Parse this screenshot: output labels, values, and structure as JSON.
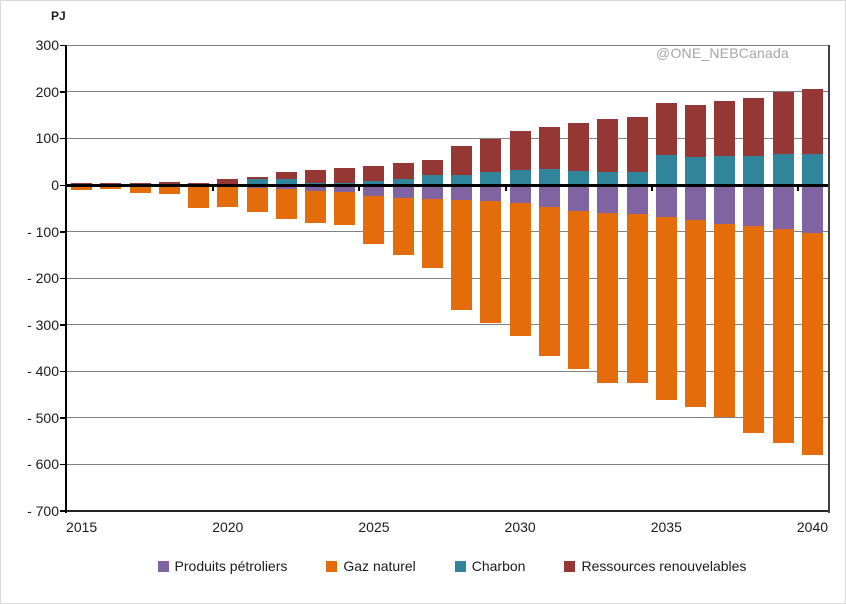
{
  "chart": {
    "unit_label": "PJ",
    "watermark": "@ONE_NEBCanada"
  },
  "chart_data": {
    "type": "bar",
    "stacked": true,
    "title": "",
    "xlabel": "",
    "ylabel": "PJ",
    "ylim": [
      -700,
      300
    ],
    "ytick_step": 100,
    "grid": true,
    "legend_position": "bottom",
    "watermark": "@ONE_NEBCanada",
    "categories": [
      2015,
      2016,
      2017,
      2018,
      2019,
      2020,
      2021,
      2022,
      2023,
      2024,
      2025,
      2026,
      2027,
      2028,
      2029,
      2030,
      2031,
      2032,
      2033,
      2034,
      2035,
      2036,
      2037,
      2038,
      2039,
      2040
    ],
    "xticks": [
      2015,
      2020,
      2025,
      2030,
      2035,
      2040
    ],
    "yticks": [
      {
        "value": 300,
        "label": "300"
      },
      {
        "value": 200,
        "label": "200"
      },
      {
        "value": 100,
        "label": "100"
      },
      {
        "value": 0,
        "label": "0"
      },
      {
        "value": -100,
        "label": "- 100"
      },
      {
        "value": -200,
        "label": "- 200"
      },
      {
        "value": -300,
        "label": "- 300"
      },
      {
        "value": -400,
        "label": "- 400"
      },
      {
        "value": -500,
        "label": "- 500"
      },
      {
        "value": -600,
        "label": "- 600"
      },
      {
        "value": -700,
        "label": "- 700"
      }
    ],
    "series": [
      {
        "name": "Produits pétroliers",
        "color": "#8064A2",
        "values": [
          0,
          0,
          0,
          0,
          -2,
          -3,
          -7,
          -8,
          -13,
          -15,
          -24,
          -28,
          -30,
          -32,
          -34,
          -39,
          -47,
          -56,
          -60,
          -63,
          -69,
          -76,
          -83,
          -88,
          -95,
          -104
        ]
      },
      {
        "name": "Gaz naturel",
        "color": "#E46C0A",
        "values": [
          -10,
          -9,
          -18,
          -20,
          -48,
          -44,
          -51,
          -66,
          -69,
          -71,
          -102,
          -123,
          -148,
          -237,
          -262,
          -286,
          -321,
          -340,
          -365,
          -363,
          -393,
          -401,
          -415,
          -444,
          -459,
          -476
        ]
      },
      {
        "name": "Charbon",
        "color": "#31859B",
        "values": [
          0,
          0,
          0,
          0,
          0,
          0,
          13,
          13,
          4,
          4,
          9,
          13,
          21,
          22,
          28,
          33,
          34,
          30,
          27,
          28,
          65,
          60,
          62,
          62,
          66,
          67
        ]
      },
      {
        "name": "Ressources renouvelables",
        "color": "#953735",
        "values": [
          5,
          5,
          5,
          6,
          5,
          12,
          4,
          15,
          28,
          33,
          32,
          34,
          33,
          61,
          70,
          83,
          90,
          103,
          114,
          117,
          111,
          112,
          119,
          125,
          134,
          139
        ]
      }
    ]
  }
}
